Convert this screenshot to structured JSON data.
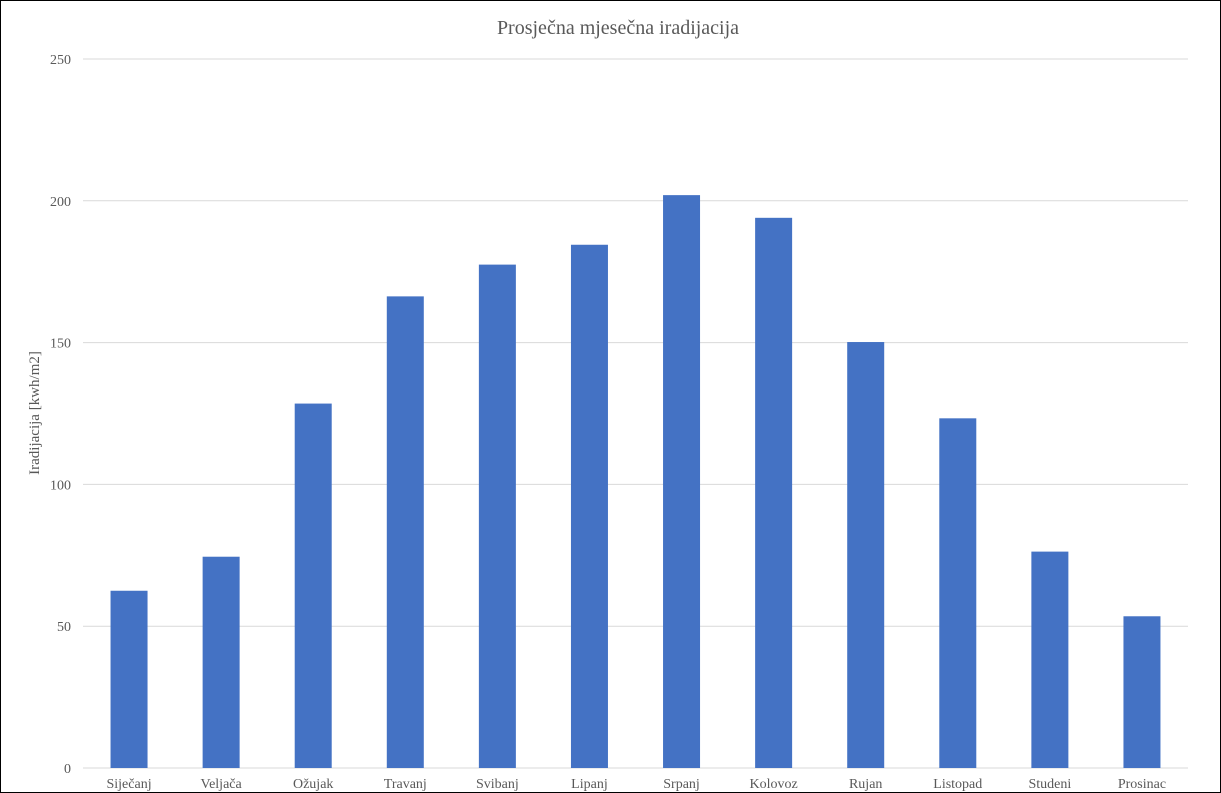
{
  "chart_data": {
    "type": "bar",
    "title": "Prosječna mjesečna iradijacija",
    "xlabel": "",
    "ylabel": "Iradijacija [kwh/m2]",
    "ylim": [
      0,
      250
    ],
    "yticks": [
      0,
      50,
      100,
      150,
      200,
      250
    ],
    "grid": true,
    "legend": "none",
    "categories": [
      "Siječanj",
      "Veljača",
      "Ožujak",
      "Travanj",
      "Svibanj",
      "Lipanj",
      "Srpanj",
      "Kolovoz",
      "Rujan",
      "Listopad",
      "Studeni",
      "Prosinac"
    ],
    "series": [
      {
        "values": [
          62.5,
          74.5,
          128.5,
          166.3,
          177.5,
          184.5,
          202.0,
          194.0,
          150.2,
          123.3,
          76.3,
          53.5
        ],
        "color": "#4472C4"
      }
    ],
    "gridline_color": "#D9D9D9",
    "text_color": "#595959"
  }
}
